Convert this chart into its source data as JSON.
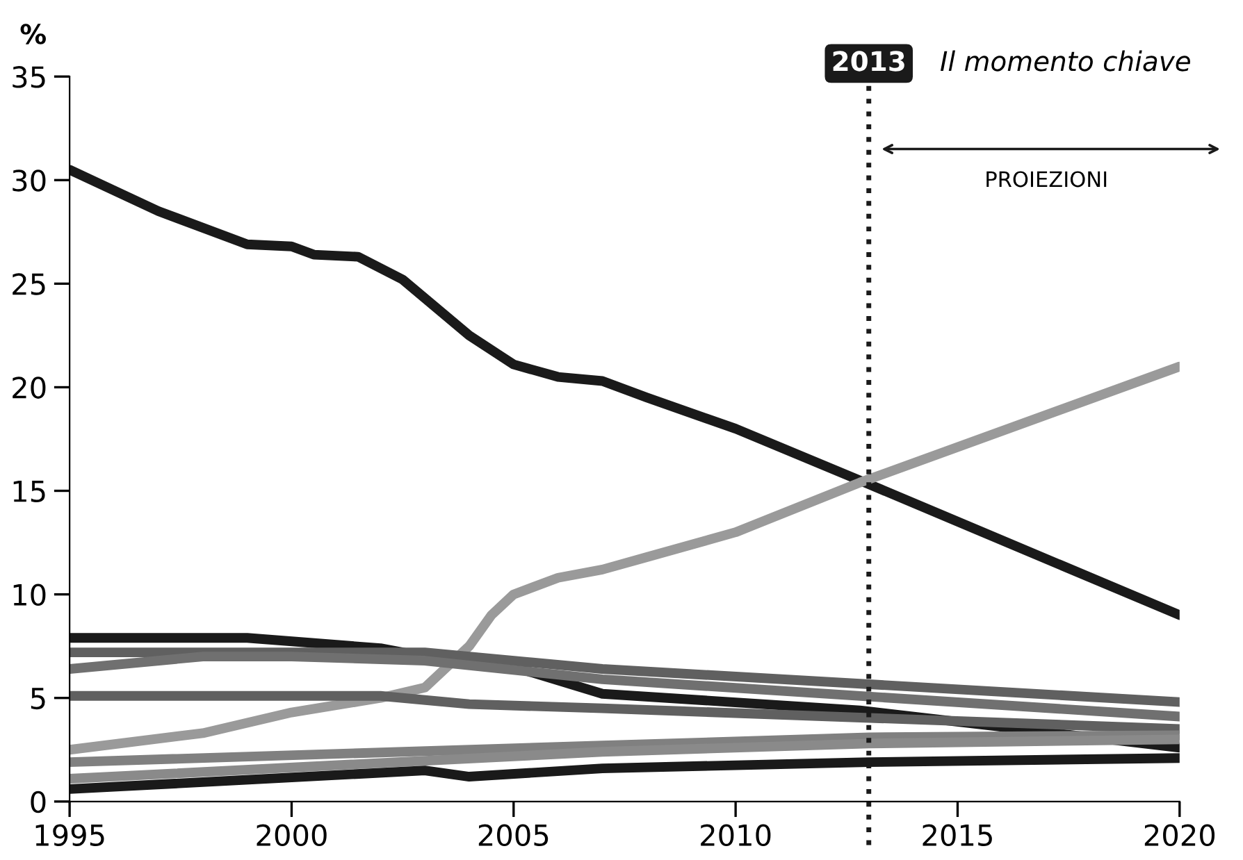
{
  "chart_data": {
    "type": "line",
    "ylabel": "%",
    "xlim": [
      1995,
      2020
    ],
    "xticks": [
      1995,
      2000,
      2005,
      2010,
      2015,
      2020
    ],
    "ylim": [
      0,
      35
    ],
    "yticks": [
      0,
      5,
      10,
      15,
      20,
      25,
      30,
      35
    ],
    "grid": false,
    "legend": false,
    "marker": "none",
    "line_style": "solid",
    "series": [
      {
        "color": "#1a1a1a",
        "x": [
          1995,
          1997,
          1999,
          2000,
          2000.5,
          2001.5,
          2002.5,
          2004,
          2005,
          2006,
          2007,
          2008,
          2010,
          2012.8,
          2020
        ],
        "values": [
          30.5,
          28.5,
          26.9,
          26.8,
          26.4,
          26.3,
          25.2,
          22.5,
          21.1,
          20.5,
          20.3,
          19.5,
          18.0,
          15.5,
          9.0
        ]
      },
      {
        "color": "#9a9a9a",
        "x": [
          1995,
          1998,
          2000,
          2002,
          2003,
          2004,
          2004.5,
          2005,
          2006,
          2007,
          2008,
          2010,
          2012.8,
          2020
        ],
        "values": [
          2.5,
          3.3,
          4.3,
          5.0,
          5.5,
          7.5,
          9.0,
          10.0,
          10.8,
          11.2,
          11.8,
          13.0,
          15.4,
          21.0
        ]
      },
      {
        "color": "#1a1a1a",
        "x": [
          1995,
          1999,
          2002,
          2003,
          2005,
          2007,
          2012.8,
          2016,
          2020
        ],
        "values": [
          7.9,
          7.9,
          7.4,
          7.0,
          6.5,
          5.2,
          4.4,
          3.6,
          2.6
        ]
      },
      {
        "color": "#606060",
        "x": [
          1995,
          2003,
          2004,
          2007,
          2020
        ],
        "values": [
          7.2,
          7.2,
          7.0,
          6.4,
          4.8
        ]
      },
      {
        "color": "#707070",
        "x": [
          1995,
          1998,
          2000,
          2003,
          2007,
          2020
        ],
        "values": [
          6.4,
          7.0,
          7.0,
          6.8,
          5.9,
          4.1
        ]
      },
      {
        "color": "#606060",
        "x": [
          1995,
          2002,
          2004,
          2007,
          2020
        ],
        "values": [
          5.1,
          5.1,
          4.7,
          4.5,
          3.5
        ]
      },
      {
        "color": "#808080",
        "x": [
          1995,
          2007,
          2013,
          2020
        ],
        "values": [
          1.9,
          2.7,
          3.1,
          3.2
        ]
      },
      {
        "color": "#8a8a8a",
        "x": [
          1995,
          2007,
          2013,
          2020
        ],
        "values": [
          1.1,
          2.4,
          2.8,
          3.0
        ]
      },
      {
        "color": "#1a1a1a",
        "x": [
          1995,
          2003,
          2004,
          2007,
          2013,
          2020
        ],
        "values": [
          0.6,
          1.5,
          1.2,
          1.6,
          1.9,
          2.1
        ]
      }
    ],
    "ref_lines": [
      {
        "axis": "x",
        "value": 2013,
        "label": "2013",
        "line_style": "dotted",
        "color": "#1a1a1a"
      }
    ],
    "annotations": [
      "Il momento chiave",
      "PROIEZIONI"
    ]
  }
}
